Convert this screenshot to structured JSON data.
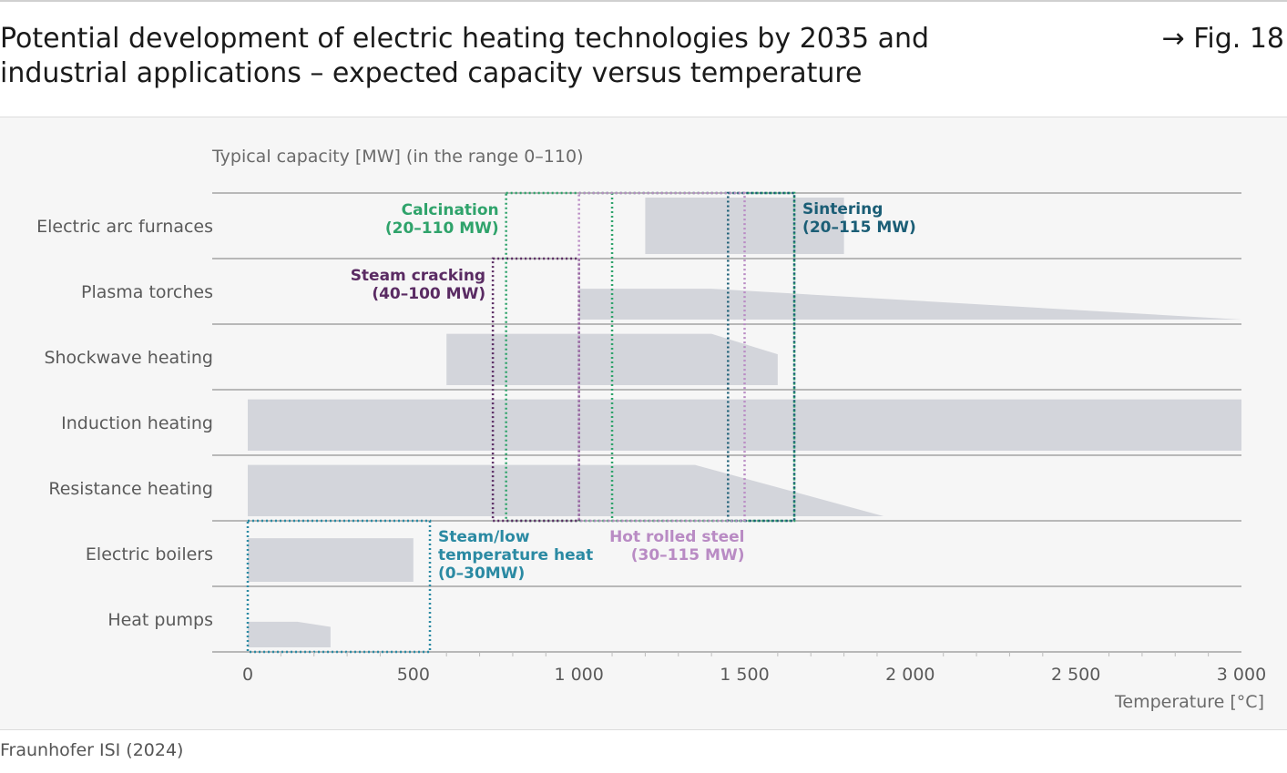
{
  "header": {
    "title_line1": "Potential development of electric heating technologies by 2035 and",
    "title_line2": "industrial applications – expected capacity versus temperature",
    "figure_ref": "→ Fig. 18"
  },
  "footer": {
    "source": "Fraunhofer ISI (2024)"
  },
  "chart_data": {
    "type": "area",
    "subtitle": "Typical capacity [MW] (in the range 0–110)",
    "xlabel": "Temperature [°C]",
    "xlim": [
      0,
      3000
    ],
    "x_ticks": [
      0,
      500,
      1000,
      1500,
      2000,
      2500,
      3000
    ],
    "x_tick_labels": [
      "0",
      "500",
      "1 000",
      "1 500",
      "2 000",
      "2 500",
      "3 000"
    ],
    "capacity_range": [
      0,
      110
    ],
    "colors": {
      "band": "#d3d5db",
      "calcination": "#2fa36b",
      "sintering": "#1b5e76",
      "steam_cracking": "#5a2b63",
      "hot_rolled_steel": "#b98bc4",
      "steam_low_temp": "#2b8aa3",
      "grid": "#7a7a7a",
      "axis_label": "#5a5a5a"
    },
    "technologies": [
      {
        "name": "Electric arc furnaces",
        "profile": [
          [
            1200,
            110
          ],
          [
            1800,
            110
          ]
        ]
      },
      {
        "name": "Plasma torches",
        "profile": [
          [
            1000,
            60
          ],
          [
            1400,
            60
          ],
          [
            3000,
            0
          ]
        ]
      },
      {
        "name": "Shockwave heating",
        "profile": [
          [
            600,
            100
          ],
          [
            1400,
            100
          ],
          [
            1600,
            60
          ]
        ]
      },
      {
        "name": "Induction heating",
        "profile": [
          [
            0,
            100
          ],
          [
            3000,
            100
          ]
        ]
      },
      {
        "name": "Resistance heating",
        "profile": [
          [
            0,
            100
          ],
          [
            1350,
            100
          ],
          [
            1920,
            0
          ]
        ]
      },
      {
        "name": "Electric boilers",
        "profile": [
          [
            0,
            85
          ],
          [
            500,
            85
          ]
        ]
      },
      {
        "name": "Heat pumps",
        "profile": [
          [
            0,
            50
          ],
          [
            150,
            50
          ],
          [
            250,
            40
          ]
        ]
      }
    ],
    "applications": [
      {
        "label_line1": "Calcination",
        "label_line2": "(20–110 MW)",
        "outer": [
          780,
          1650
        ],
        "inner": [
          1100,
          1100
        ],
        "rows": [
          0,
          4
        ],
        "color_key": "calcination",
        "label_side": "left"
      },
      {
        "label_line1": "Sintering",
        "label_line2": "(20–115 MW)",
        "outer": [
          1450,
          1650
        ],
        "rows": [
          0,
          4
        ],
        "color_key": "sintering",
        "label_side": "right"
      },
      {
        "label_line1": "Steam cracking",
        "label_line2": "(40–100 MW)",
        "outer": [
          740,
          1000
        ],
        "rows": [
          1,
          4
        ],
        "color_key": "steam_cracking",
        "label_side": "left"
      },
      {
        "label_line1": "Hot rolled steel",
        "label_line2": "(30–115 MW)",
        "outer": [
          1000,
          1500
        ],
        "rows": [
          0,
          4
        ],
        "color_key": "hot_rolled_steel",
        "label_side": "below"
      },
      {
        "label_line1": "Steam/low",
        "label_line2": "temperature heat",
        "label_line3": "(0–30MW)",
        "outer": [
          0,
          550
        ],
        "rows": [
          5,
          6
        ],
        "color_key": "steam_low_temp",
        "label_side": "right"
      }
    ]
  }
}
